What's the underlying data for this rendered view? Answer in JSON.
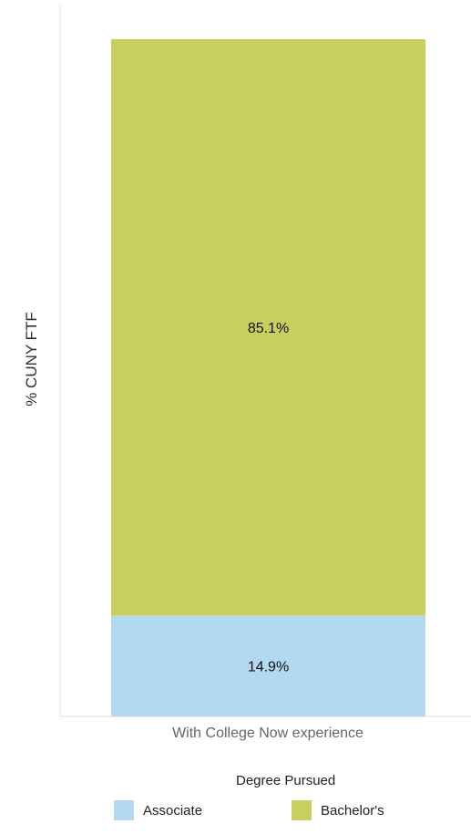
{
  "chart_data": {
    "type": "bar",
    "stacked": true,
    "categories": [
      "With College Now experience"
    ],
    "series": [
      {
        "name": "Associate",
        "values": [
          14.9
        ],
        "label": "14.9%",
        "color": "#b3d9f0"
      },
      {
        "name": "Bachelor's",
        "values": [
          85.1
        ],
        "label": "85.1%",
        "color": "#c9cf5e"
      }
    ],
    "ylabel": "% CUNY FTF",
    "xlabel": "",
    "ylim": [
      0,
      100
    ],
    "grid": false,
    "legend": {
      "title": "Degree Pursued",
      "position": "bottom"
    }
  }
}
